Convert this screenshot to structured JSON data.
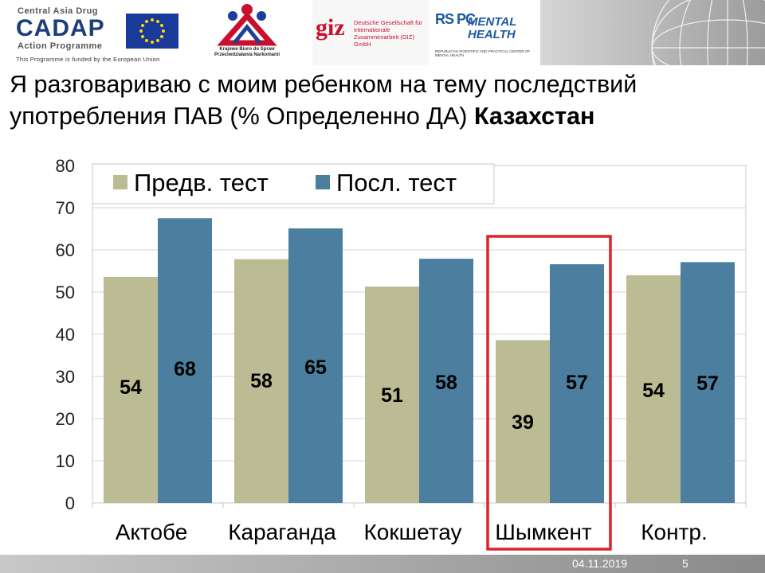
{
  "logos": {
    "cadap": {
      "top_line": "Central Asia Drug",
      "name": "CADAP",
      "sub_line": "Action Programme",
      "funded": "This Programme is funded by the European Union"
    },
    "krajowe": {
      "text": "Krajowe Biuro do Spraw Przeciwdziałania Narkomanii"
    },
    "giz": {
      "mark": "giz",
      "text": "Deutsche Gesellschaft für Internationale Zusammenarbeit (GIZ) GmbH"
    },
    "mental_health": {
      "mark": "RS PC",
      "title_line1": "MENTAL",
      "title_line2": "HEALTH",
      "sub": "REPUBLICAN SCIENTIFIC AND PRACTICAL CENTER OF MENTAL HEALTH"
    }
  },
  "slide": {
    "title_regular": "Я разговариваю с моим ребенком на тему последствий употребления ПАВ (% Определенно ДА) ",
    "title_bold": "Казахстан"
  },
  "chart_data": {
    "type": "bar",
    "categories": [
      "Актобе",
      "Караганда",
      "Кокшетау",
      "Шымкент",
      "Контр."
    ],
    "series": [
      {
        "name": "Предв. тест",
        "values": [
          53.6,
          57.8,
          51.3,
          38.6,
          54.0
        ],
        "labels": [
          "54",
          "58",
          "51",
          "39",
          "54"
        ],
        "color": "#bcbc94"
      },
      {
        "name": "Посл. тест",
        "values": [
          67.5,
          65.1,
          57.9,
          56.6,
          57.1
        ],
        "labels": [
          "68",
          "65",
          "58",
          "57",
          "57"
        ],
        "color": "#4c7f9f"
      }
    ],
    "ylim": [
      0,
      80
    ],
    "yticks": [
      0,
      10,
      20,
      30,
      40,
      50,
      60,
      70,
      80
    ],
    "grid": true,
    "legend": "top-left",
    "highlight_category": "Шымкент",
    "highlight_color": "#d9262c"
  },
  "footer": {
    "date": "04.11.2019",
    "page": "5"
  }
}
